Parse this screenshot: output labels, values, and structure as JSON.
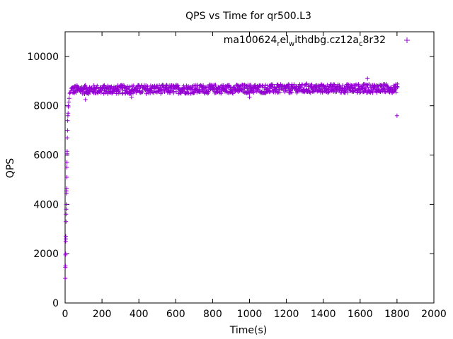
{
  "chart_data": {
    "type": "scatter",
    "title": "QPS vs Time for qr500.L3",
    "xlabel": "Time(s)",
    "ylabel": "QPS",
    "xlim": [
      0,
      2000
    ],
    "ylim": [
      0,
      11000
    ],
    "xticks": [
      0,
      200,
      400,
      600,
      800,
      1000,
      1200,
      1400,
      1600,
      1800,
      2000
    ],
    "yticks": [
      0,
      2000,
      4000,
      6000,
      8000,
      10000
    ],
    "grid": false,
    "legend_position": "top-right",
    "series": [
      {
        "name": "ma100624_rel_withdbg.cz12a_c8r32",
        "legend_parts": [
          {
            "text": "ma100624",
            "sub": false
          },
          {
            "text": "r",
            "sub": true
          },
          {
            "text": "el",
            "sub": false
          },
          {
            "text": "w",
            "sub": true
          },
          {
            "text": "ithdbg.cz12a",
            "sub": false
          },
          {
            "text": "c",
            "sub": true
          },
          {
            "text": "8r32",
            "sub": false
          }
        ],
        "color": "#9400d3",
        "marker": "+",
        "ramp_points": [
          {
            "x": 1,
            "y": 1000
          },
          {
            "x": 1,
            "y": 1450
          },
          {
            "x": 2,
            "y": 1500
          },
          {
            "x": 2,
            "y": 1950
          },
          {
            "x": 3,
            "y": 2000
          },
          {
            "x": 3,
            "y": 2500
          },
          {
            "x": 4,
            "y": 2600
          },
          {
            "x": 4,
            "y": 2700
          },
          {
            "x": 5,
            "y": 3300
          },
          {
            "x": 5,
            "y": 3600
          },
          {
            "x": 6,
            "y": 3800
          },
          {
            "x": 6,
            "y": 4000
          },
          {
            "x": 7,
            "y": 4450
          },
          {
            "x": 7,
            "y": 4550
          },
          {
            "x": 8,
            "y": 4650
          },
          {
            "x": 9,
            "y": 5100
          },
          {
            "x": 9,
            "y": 5500
          },
          {
            "x": 10,
            "y": 5700
          },
          {
            "x": 11,
            "y": 6050
          },
          {
            "x": 11,
            "y": 6150
          },
          {
            "x": 12,
            "y": 6700
          },
          {
            "x": 13,
            "y": 7000
          },
          {
            "x": 14,
            "y": 7400
          },
          {
            "x": 15,
            "y": 7600
          },
          {
            "x": 16,
            "y": 7700
          },
          {
            "x": 17,
            "y": 8000
          },
          {
            "x": 18,
            "y": 7950
          },
          {
            "x": 20,
            "y": 8150
          },
          {
            "x": 22,
            "y": 8300
          },
          {
            "x": 25,
            "y": 8500
          },
          {
            "x": 28,
            "y": 8550
          },
          {
            "x": 32,
            "y": 8600
          }
        ],
        "steady_state": {
          "x_start": 35,
          "x_end": 1800,
          "x_step": 5,
          "y_center": 8650,
          "y_spread": 180
        },
        "outliers": [
          {
            "x": 110,
            "y": 8250
          },
          {
            "x": 360,
            "y": 8350
          },
          {
            "x": 1000,
            "y": 8350
          },
          {
            "x": 1310,
            "y": 8900
          },
          {
            "x": 1640,
            "y": 9100
          },
          {
            "x": 1800,
            "y": 7600
          }
        ]
      }
    ]
  }
}
